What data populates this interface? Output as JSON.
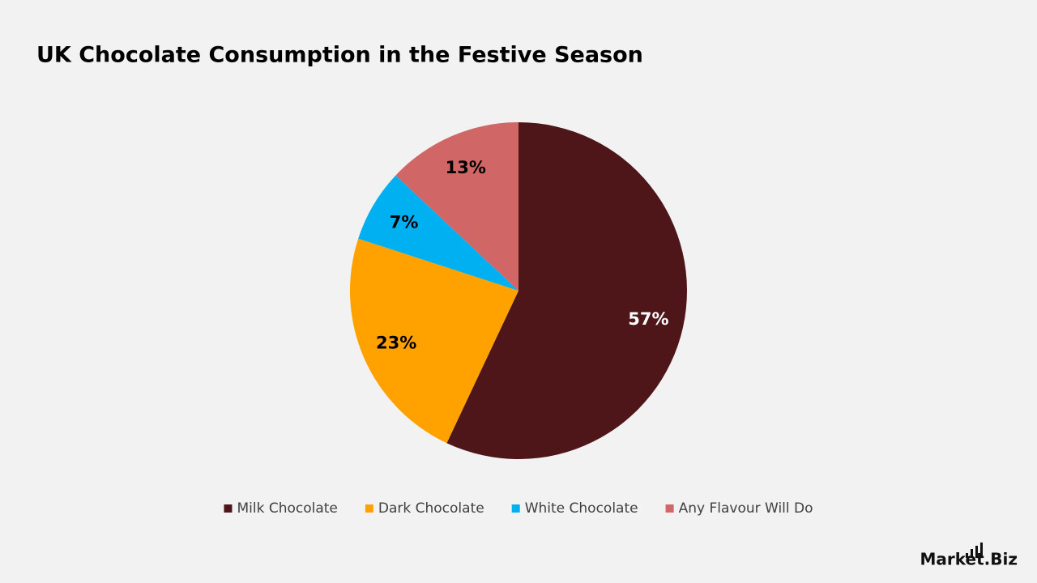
{
  "chart_data": {
    "type": "pie",
    "title": "UK Chocolate Consumption in the Festive Season",
    "categories": [
      "Milk Chocolate",
      "Dark Chocolate",
      "White Chocolate",
      "Any Flavour Will Do"
    ],
    "values": [
      57,
      23,
      7,
      13
    ],
    "value_labels": [
      "57%",
      "23%",
      "7%",
      "13%"
    ],
    "colors": [
      "#4e1619",
      "#ffa200",
      "#00b0f0",
      "#d06666"
    ],
    "legend": "bottom"
  },
  "brand": "Market.Biz"
}
